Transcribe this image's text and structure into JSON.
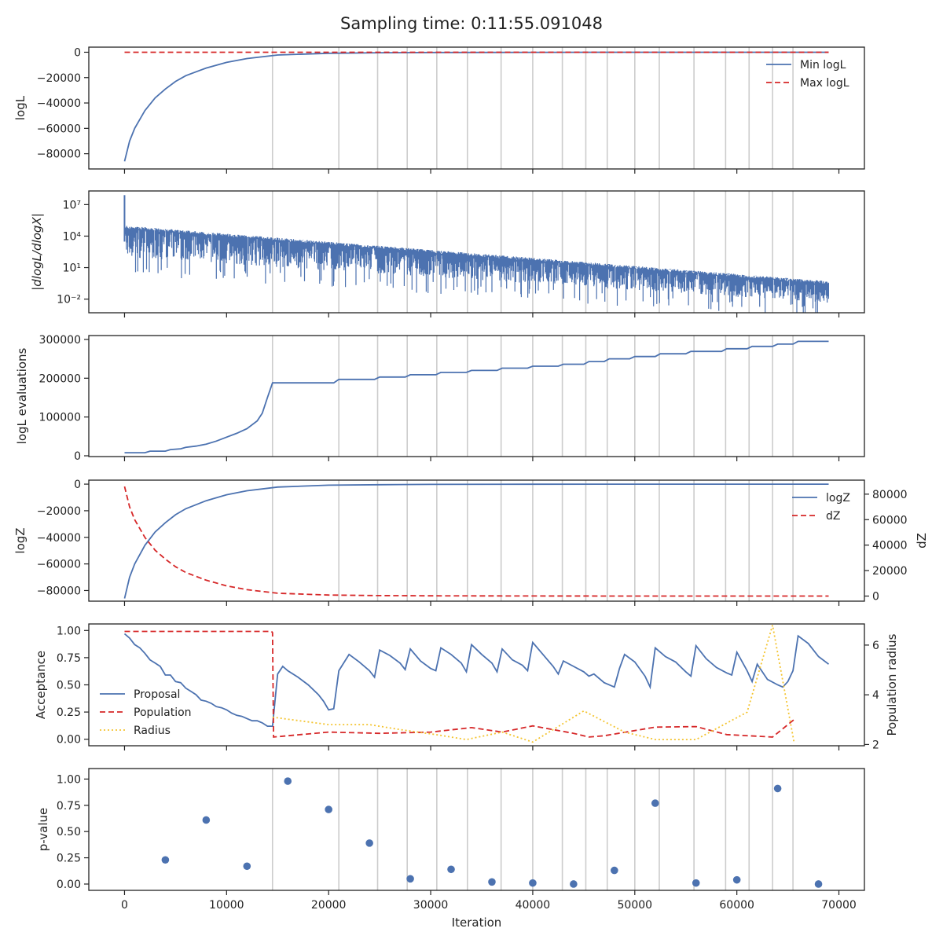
{
  "title": "Sampling time: 0:11:55.091048",
  "colors": {
    "blue": "#4c72b0",
    "red": "#d62728",
    "yellow": "#f4c430",
    "grid": "#cccccc",
    "axis": "#222222"
  },
  "chart_data": [
    {
      "type": "line",
      "ylabel": "logL",
      "xlim": [
        -3500,
        72500
      ],
      "ylim": [
        -92000,
        4000
      ],
      "yticks": [
        0,
        -20000,
        -40000,
        -60000,
        -80000
      ],
      "ytick_labels": [
        "0",
        "−20000",
        "−40000",
        "−60000",
        "−80000"
      ],
      "legend": "top-right",
      "series": [
        {
          "name": "Min logL",
          "style": "solid",
          "color": "#4c72b0",
          "x": [
            0,
            500,
            1000,
            2000,
            3000,
            4000,
            5000,
            6000,
            8000,
            10000,
            12000,
            15000,
            20000,
            25000,
            30000,
            40000,
            50000,
            60000,
            69000
          ],
          "y": [
            -86000,
            -70000,
            -60000,
            -46000,
            -36000,
            -29000,
            -23000,
            -18500,
            -12500,
            -8000,
            -5000,
            -2200,
            -800,
            -400,
            -200,
            -80,
            -30,
            -10,
            -1
          ]
        },
        {
          "name": "Max logL",
          "style": "dashed",
          "color": "#d62728",
          "x": [
            0,
            69000
          ],
          "y": [
            0,
            0
          ]
        }
      ]
    },
    {
      "type": "line",
      "ylabel": "|dlogL/dlogX|",
      "yscale": "log",
      "xlim": [
        -3500,
        72500
      ],
      "ylim": [
        0.0005,
        200000000
      ],
      "yticks": [
        10000000,
        10000,
        10,
        0.01
      ],
      "ytick_labels": [
        "10⁷",
        "10⁴",
        "10¹",
        "10⁻²"
      ],
      "series": [
        {
          "name": "",
          "style": "band",
          "color": "#4c72b0",
          "x": [
            0,
            69000
          ],
          "upper": [
            100000,
            0.5
          ],
          "lower": [
            30,
            0.002
          ]
        }
      ]
    },
    {
      "type": "line",
      "ylabel": "logL evaluations",
      "xlim": [
        -3500,
        72500
      ],
      "ylim": [
        -2000,
        310000
      ],
      "yticks": [
        0,
        100000,
        200000,
        300000
      ],
      "ytick_labels": [
        "0",
        "100000",
        "200000",
        "300000"
      ],
      "series": [
        {
          "name": "",
          "style": "solid",
          "color": "#4c72b0",
          "x": [
            0,
            2000,
            2500,
            4000,
            4500,
            5500,
            6000,
            7000,
            8000,
            9000,
            10000,
            11000,
            12000,
            13000,
            13500,
            14000,
            14500,
            20500,
            21000,
            24500,
            25000,
            27500,
            28000,
            30500,
            31000,
            33500,
            34000,
            36500,
            37000,
            39500,
            40000,
            42500,
            43000,
            45000,
            45500,
            47000,
            47500,
            49500,
            50000,
            52000,
            52500,
            55000,
            55500,
            58500,
            59000,
            61000,
            61500,
            63500,
            64000,
            65500,
            66000,
            69000
          ],
          "y": [
            8000,
            8000,
            12000,
            12000,
            16000,
            18000,
            22000,
            25000,
            30000,
            38000,
            48000,
            58000,
            70000,
            90000,
            110000,
            150000,
            188000,
            188000,
            197000,
            197000,
            203000,
            203000,
            209000,
            209000,
            215000,
            215000,
            220000,
            220000,
            226000,
            226000,
            231000,
            231000,
            236000,
            236000,
            243000,
            243000,
            250000,
            250000,
            256000,
            256000,
            263000,
            263000,
            269000,
            269000,
            276000,
            276000,
            282000,
            282000,
            288000,
            288000,
            295000,
            295000
          ]
        }
      ]
    },
    {
      "type": "line",
      "ylabel": "logZ",
      "ylabel_right": "dZ",
      "xlim": [
        -3500,
        72500
      ],
      "ylim": [
        -88000,
        3000
      ],
      "yticks": [
        0,
        -20000,
        -40000,
        -60000,
        -80000
      ],
      "ytick_labels": [
        "0",
        "−20000",
        "−40000",
        "−60000",
        "−80000"
      ],
      "ylim_right": [
        -4000,
        91000
      ],
      "yticks_right": [
        80000,
        60000,
        40000,
        20000,
        0
      ],
      "ytick_labels_right": [
        "80000",
        "60000",
        "40000",
        "20000",
        "0"
      ],
      "legend": "top-right",
      "series": [
        {
          "name": "logZ",
          "style": "solid",
          "color": "#4c72b0",
          "axis": "left",
          "x": [
            0,
            500,
            1000,
            2000,
            3000,
            4000,
            5000,
            6000,
            8000,
            10000,
            12000,
            15000,
            20000,
            25000,
            30000,
            40000,
            50000,
            60000,
            69000
          ],
          "y": [
            -86000,
            -70000,
            -60000,
            -46000,
            -36000,
            -29000,
            -23000,
            -18500,
            -12500,
            -8000,
            -5000,
            -2200,
            -800,
            -400,
            -200,
            -80,
            -30,
            -10,
            -1
          ]
        },
        {
          "name": "dZ",
          "style": "dashed",
          "color": "#d62728",
          "axis": "right",
          "x": [
            0,
            500,
            1000,
            2000,
            3000,
            4000,
            5000,
            6000,
            8000,
            10000,
            12000,
            15000,
            20000,
            25000,
            30000,
            40000,
            50000,
            60000,
            69000
          ],
          "y": [
            86000,
            70000,
            60000,
            46000,
            36000,
            29000,
            23000,
            18500,
            12500,
            8000,
            5000,
            2200,
            800,
            400,
            200,
            80,
            30,
            10,
            1
          ]
        }
      ]
    },
    {
      "type": "line",
      "ylabel": "Acceptance",
      "ylabel_right": "Population radius",
      "xlim": [
        -3500,
        72500
      ],
      "ylim": [
        -0.06,
        1.06
      ],
      "yticks": [
        1.0,
        0.75,
        0.5,
        0.25,
        0.0
      ],
      "ytick_labels": [
        "1.00",
        "0.75",
        "0.50",
        "0.25",
        "0.00"
      ],
      "ylim_right": [
        1.95,
        6.85
      ],
      "yticks_right": [
        6,
        4,
        2
      ],
      "ytick_labels_right": [
        "6",
        "4",
        "2"
      ],
      "legend": "center-left",
      "series": [
        {
          "name": "Proposal",
          "style": "solid",
          "color": "#4c72b0",
          "axis": "left",
          "x": [
            0,
            500,
            1000,
            1500,
            2000,
            2500,
            3000,
            3500,
            4000,
            4500,
            5000,
            5500,
            6000,
            6500,
            7000,
            7500,
            8000,
            8500,
            9000,
            9500,
            10000,
            10500,
            11000,
            11500,
            12000,
            12500,
            13000,
            13500,
            14000,
            14500,
            15000,
            15500,
            16000,
            17000,
            18000,
            19000,
            19500,
            20000,
            20500,
            21000,
            22000,
            23000,
            24000,
            24500,
            25000,
            26000,
            27000,
            27500,
            28000,
            29000,
            30000,
            30500,
            31000,
            32000,
            33000,
            33500,
            34000,
            35000,
            36000,
            36500,
            37000,
            38000,
            39000,
            39500,
            40000,
            41000,
            42000,
            42500,
            43000,
            44000,
            45000,
            45500,
            46000,
            47000,
            48000,
            48500,
            49000,
            50000,
            51000,
            51500,
            52000,
            53000,
            54000,
            55000,
            55500,
            56000,
            57000,
            58000,
            59000,
            59500,
            60000,
            61000,
            61500,
            62000,
            63000,
            64000,
            64500,
            65000,
            65500,
            66000,
            67000,
            68000,
            69000
          ],
          "y": [
            0.97,
            0.93,
            0.87,
            0.84,
            0.79,
            0.73,
            0.7,
            0.67,
            0.59,
            0.59,
            0.53,
            0.52,
            0.47,
            0.44,
            0.41,
            0.36,
            0.35,
            0.33,
            0.3,
            0.29,
            0.27,
            0.24,
            0.22,
            0.21,
            0.19,
            0.17,
            0.17,
            0.15,
            0.12,
            0.12,
            0.6,
            0.67,
            0.63,
            0.57,
            0.5,
            0.41,
            0.35,
            0.27,
            0.28,
            0.63,
            0.78,
            0.71,
            0.63,
            0.57,
            0.82,
            0.77,
            0.7,
            0.64,
            0.83,
            0.72,
            0.65,
            0.63,
            0.84,
            0.78,
            0.7,
            0.62,
            0.87,
            0.78,
            0.7,
            0.62,
            0.83,
            0.73,
            0.68,
            0.63,
            0.89,
            0.78,
            0.67,
            0.6,
            0.72,
            0.67,
            0.62,
            0.58,
            0.6,
            0.52,
            0.48,
            0.65,
            0.78,
            0.71,
            0.58,
            0.48,
            0.84,
            0.76,
            0.71,
            0.62,
            0.58,
            0.86,
            0.74,
            0.66,
            0.61,
            0.59,
            0.8,
            0.63,
            0.53,
            0.69,
            0.55,
            0.5,
            0.48,
            0.53,
            0.63,
            0.95,
            0.88,
            0.76,
            0.69
          ]
        },
        {
          "name": "Population",
          "style": "dashed",
          "color": "#d62728",
          "axis": "right",
          "x": [
            0,
            14400,
            14500,
            14600,
            20000,
            25000,
            30000,
            34000,
            37000,
            40000,
            44000,
            45500,
            47000,
            52000,
            56000,
            59000,
            63500,
            65600
          ],
          "y": [
            6.55,
            6.55,
            6.5,
            2.3,
            2.5,
            2.45,
            2.5,
            2.68,
            2.5,
            2.75,
            2.45,
            2.3,
            2.35,
            2.7,
            2.72,
            2.4,
            2.3,
            3.0
          ]
        },
        {
          "name": "Radius",
          "style": "dotted",
          "color": "#f4c430",
          "axis": "right",
          "x": [
            14500,
            20000,
            24000,
            27000,
            30500,
            33500,
            37000,
            40000,
            45000,
            49000,
            52000,
            56000,
            61000,
            63500,
            65600
          ],
          "y": [
            3.1,
            2.8,
            2.8,
            2.6,
            2.4,
            2.2,
            2.5,
            2.1,
            3.35,
            2.5,
            2.2,
            2.2,
            3.3,
            6.8,
            2.1
          ]
        }
      ]
    },
    {
      "type": "scatter",
      "ylabel": "p-value",
      "xlabel": "Iteration",
      "xlim": [
        -3500,
        72500
      ],
      "ylim": [
        -0.06,
        1.1
      ],
      "yticks": [
        1.0,
        0.75,
        0.5,
        0.25,
        0.0
      ],
      "ytick_labels": [
        "1.00",
        "0.75",
        "0.50",
        "0.25",
        "0.00"
      ],
      "xticks": [
        0,
        10000,
        20000,
        30000,
        40000,
        50000,
        60000,
        70000
      ],
      "xtick_labels": [
        "0",
        "10000",
        "20000",
        "30000",
        "40000",
        "50000",
        "60000",
        "70000"
      ],
      "series": [
        {
          "name": "",
          "color": "#4c72b0",
          "x": [
            4000,
            8000,
            12000,
            16000,
            20000,
            24000,
            28000,
            32000,
            36000,
            40000,
            44000,
            48000,
            52000,
            56000,
            60000,
            64000,
            68000
          ],
          "y": [
            0.23,
            0.61,
            0.17,
            0.98,
            0.71,
            0.39,
            0.05,
            0.14,
            0.02,
            0.01,
            0.0,
            0.13,
            0.77,
            0.01,
            0.04,
            0.91,
            0.0
          ]
        }
      ]
    }
  ],
  "vlines": [
    14500,
    21000,
    24800,
    27700,
    30600,
    33600,
    36900,
    40000,
    42900,
    45200,
    47300,
    50000,
    52400,
    55800,
    58900,
    61200,
    63500,
    65500
  ],
  "xtick_values": [
    0,
    10000,
    20000,
    30000,
    40000,
    50000,
    60000,
    70000
  ]
}
